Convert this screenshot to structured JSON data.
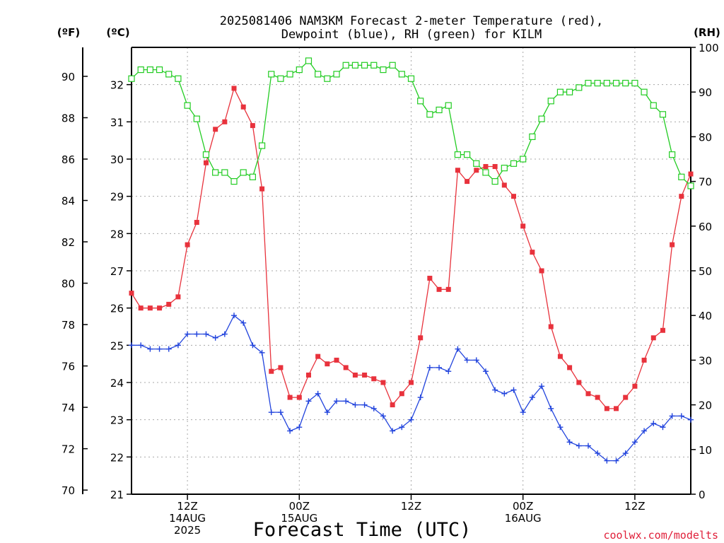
{
  "title_line1": "2025081406 NAM3KM Forecast 2-meter Temperature (red),",
  "title_line2": "Dewpoint (blue), RH (green) for KILM",
  "units": {
    "fahrenheit": "(ºF)",
    "celsius": "(ºC)",
    "rh": "(RH)"
  },
  "x_axis_label": "Forecast Time (UTC)",
  "credit": "coolwx.com/modelts",
  "chart_data": {
    "type": "line",
    "title": "2025081406 NAM3KM Forecast 2-meter Temperature (red), Dewpoint (blue), RH (green) for KILM",
    "xlabel": "Forecast Time (UTC)",
    "x_unit": "forecast hour from 2025081406",
    "x": [
      0,
      1,
      2,
      3,
      4,
      5,
      6,
      7,
      8,
      9,
      10,
      11,
      12,
      13,
      14,
      15,
      16,
      17,
      18,
      19,
      20,
      21,
      22,
      23,
      24,
      25,
      26,
      27,
      28,
      29,
      30,
      31,
      32,
      33,
      34,
      35,
      36,
      37,
      38,
      39,
      40,
      41,
      42,
      43,
      44,
      45,
      46,
      47,
      48,
      49,
      50,
      51,
      52,
      53,
      54,
      55,
      56,
      57,
      58,
      59,
      60
    ],
    "xlim": [
      0,
      60
    ],
    "x_ticks": [
      {
        "hour": 6,
        "lines": [
          "12Z",
          "14AUG",
          "2025"
        ]
      },
      {
        "hour": 18,
        "lines": [
          "00Z",
          "15AUG"
        ]
      },
      {
        "hour": 30,
        "lines": [
          "12Z"
        ]
      },
      {
        "hour": 42,
        "lines": [
          "00Z",
          "16AUG"
        ]
      },
      {
        "hour": 54,
        "lines": [
          "12Z"
        ]
      }
    ],
    "y_celsius": {
      "range": [
        21,
        33
      ],
      "ticks": [
        21,
        22,
        23,
        24,
        25,
        26,
        27,
        28,
        29,
        30,
        31,
        32
      ],
      "label": "(ºC)"
    },
    "y_fahrenheit": {
      "range": [
        69.8,
        91.4
      ],
      "ticks": [
        70,
        72,
        74,
        76,
        78,
        80,
        82,
        84,
        86,
        88,
        90
      ],
      "label": "(ºF)"
    },
    "y_rh": {
      "range": [
        0,
        100
      ],
      "ticks": [
        0,
        10,
        20,
        30,
        40,
        50,
        60,
        70,
        80,
        90,
        100
      ],
      "label": "(RH)"
    },
    "grid": true,
    "series": [
      {
        "axis": "celsius",
        "color": "#e8323c",
        "marker": "filled-square",
        "values": [
          26.4,
          26.0,
          26.0,
          26.0,
          26.1,
          26.3,
          27.7,
          28.3,
          29.9,
          30.8,
          31.0,
          31.9,
          31.4,
          30.9,
          29.2,
          24.3,
          24.4,
          23.6,
          23.6,
          24.2,
          24.7,
          24.5,
          24.6,
          24.4,
          24.2,
          24.2,
          24.1,
          24.0,
          23.4,
          23.7,
          24.0,
          25.2,
          26.8,
          26.5,
          26.5,
          29.7,
          29.4,
          29.7,
          29.8,
          29.8,
          29.3,
          29.0,
          28.2,
          27.5,
          27.0,
          25.5,
          24.7,
          24.4,
          24.0,
          23.7,
          23.6,
          23.3,
          23.3,
          23.6,
          23.9,
          24.6,
          25.2,
          25.4,
          27.7,
          29.0,
          29.6
        ]
      },
      {
        "axis": "celsius",
        "color": "#2244dd",
        "marker": "plus",
        "values": [
          25.0,
          25.0,
          24.9,
          24.9,
          24.9,
          25.0,
          25.3,
          25.3,
          25.3,
          25.2,
          25.3,
          25.8,
          25.6,
          25.0,
          24.8,
          23.2,
          23.2,
          22.7,
          22.8,
          23.5,
          23.7,
          23.2,
          23.5,
          23.5,
          23.4,
          23.4,
          23.3,
          23.1,
          22.7,
          22.8,
          23.0,
          23.6,
          24.4,
          24.4,
          24.3,
          24.9,
          24.6,
          24.6,
          24.3,
          23.8,
          23.7,
          23.8,
          23.2,
          23.6,
          23.9,
          23.3,
          22.8,
          22.4,
          22.3,
          22.3,
          22.1,
          21.9,
          21.9,
          22.1,
          22.4,
          22.7,
          22.9,
          22.8,
          23.1,
          23.1,
          23.0
        ]
      },
      {
        "axis": "rh",
        "color": "#22cc22",
        "marker": "open-square",
        "values": [
          93,
          95,
          95,
          95,
          94,
          93,
          87,
          84,
          76,
          72,
          72,
          70,
          72,
          71,
          78,
          94,
          93,
          94,
          95,
          97,
          94,
          93,
          94,
          96,
          96,
          96,
          96,
          95,
          96,
          94,
          93,
          88,
          85,
          86,
          87,
          76,
          76,
          74,
          72,
          70,
          73,
          74,
          75,
          80,
          84,
          88,
          90,
          90,
          91,
          92,
          92,
          92,
          92,
          92,
          92,
          90,
          87,
          85,
          76,
          71,
          69
        ]
      }
    ]
  }
}
